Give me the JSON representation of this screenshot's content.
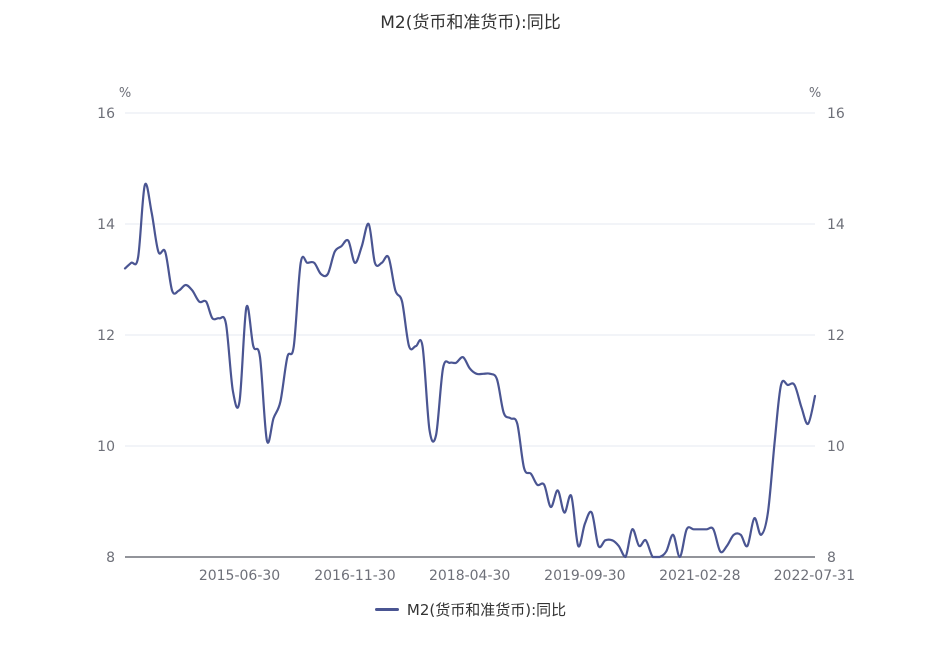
{
  "chart_data": {
    "type": "line",
    "title": "M2(货币和准货币):同比",
    "unit_left": "%",
    "unit_right": "%",
    "ylim": [
      8,
      16
    ],
    "yticks": [
      8,
      10,
      12,
      14,
      16
    ],
    "xlim": [
      "2014-01-31",
      "2022-07-31"
    ],
    "xticks": [
      "2015-06-30",
      "2016-11-30",
      "2018-04-30",
      "2019-09-30",
      "2021-02-28",
      "2022-07-31"
    ],
    "grid": true,
    "legend_position": "bottom",
    "series": [
      {
        "name": "M2(货币和准货币):同比",
        "color": "#4a5592",
        "points": [
          [
            "2014-01-31",
            13.2
          ],
          [
            "2014-02-28",
            13.3
          ],
          [
            "2014-03-31",
            13.4
          ],
          [
            "2014-04-30",
            14.7
          ],
          [
            "2014-05-31",
            14.2
          ],
          [
            "2014-06-30",
            13.5
          ],
          [
            "2014-07-31",
            13.5
          ],
          [
            "2014-08-31",
            12.8
          ],
          [
            "2014-09-30",
            12.8
          ],
          [
            "2014-10-31",
            12.9
          ],
          [
            "2014-11-30",
            12.8
          ],
          [
            "2014-12-31",
            12.6
          ],
          [
            "2015-01-31",
            12.6
          ],
          [
            "2015-02-28",
            12.3
          ],
          [
            "2015-03-31",
            12.3
          ],
          [
            "2015-04-30",
            12.2
          ],
          [
            "2015-05-31",
            11.0
          ],
          [
            "2015-06-30",
            10.8
          ],
          [
            "2015-07-31",
            12.5
          ],
          [
            "2015-08-31",
            11.8
          ],
          [
            "2015-09-30",
            11.6
          ],
          [
            "2015-10-31",
            10.1
          ],
          [
            "2015-11-30",
            10.5
          ],
          [
            "2015-12-31",
            10.8
          ],
          [
            "2016-01-31",
            11.6
          ],
          [
            "2016-02-29",
            11.8
          ],
          [
            "2016-03-31",
            13.3
          ],
          [
            "2016-04-30",
            13.3
          ],
          [
            "2016-05-31",
            13.3
          ],
          [
            "2016-06-30",
            13.1
          ],
          [
            "2016-07-31",
            13.1
          ],
          [
            "2016-08-31",
            13.5
          ],
          [
            "2016-09-30",
            13.6
          ],
          [
            "2016-10-31",
            13.7
          ],
          [
            "2016-11-30",
            13.3
          ],
          [
            "2016-12-31",
            13.6
          ],
          [
            "2017-01-31",
            14.0
          ],
          [
            "2017-02-28",
            13.3
          ],
          [
            "2017-03-31",
            13.3
          ],
          [
            "2017-04-30",
            13.4
          ],
          [
            "2017-05-31",
            12.8
          ],
          [
            "2017-06-30",
            12.6
          ],
          [
            "2017-07-31",
            11.8
          ],
          [
            "2017-08-31",
            11.8
          ],
          [
            "2017-09-30",
            11.8
          ],
          [
            "2017-10-31",
            10.3
          ],
          [
            "2017-11-30",
            10.2
          ],
          [
            "2017-12-31",
            11.4
          ],
          [
            "2018-01-31",
            11.5
          ],
          [
            "2018-02-28",
            11.5
          ],
          [
            "2018-03-31",
            11.6
          ],
          [
            "2018-04-30",
            11.4
          ],
          [
            "2018-05-31",
            11.3
          ],
          [
            "2018-06-30",
            11.3
          ],
          [
            "2018-07-31",
            11.3
          ],
          [
            "2018-08-31",
            11.2
          ],
          [
            "2018-09-30",
            10.6
          ],
          [
            "2018-10-31",
            10.5
          ],
          [
            "2018-11-30",
            10.4
          ],
          [
            "2018-12-31",
            9.6
          ],
          [
            "2019-01-31",
            9.5
          ],
          [
            "2019-02-28",
            9.3
          ],
          [
            "2019-03-31",
            9.3
          ],
          [
            "2019-04-30",
            8.9
          ],
          [
            "2019-05-31",
            9.2
          ],
          [
            "2019-06-30",
            8.8
          ],
          [
            "2019-07-31",
            9.1
          ],
          [
            "2019-08-31",
            8.2
          ],
          [
            "2019-09-30",
            8.6
          ],
          [
            "2019-10-31",
            8.8
          ],
          [
            "2019-11-30",
            8.2
          ],
          [
            "2019-12-31",
            8.3
          ],
          [
            "2020-01-31",
            8.3
          ],
          [
            "2020-02-29",
            8.2
          ],
          [
            "2020-03-31",
            8.0
          ],
          [
            "2020-04-30",
            8.5
          ],
          [
            "2020-05-31",
            8.2
          ],
          [
            "2020-06-30",
            8.3
          ],
          [
            "2020-07-31",
            8.0
          ],
          [
            "2020-08-31",
            8.0
          ],
          [
            "2020-09-30",
            8.1
          ],
          [
            "2020-10-31",
            8.4
          ],
          [
            "2020-11-30",
            8.0
          ],
          [
            "2020-12-31",
            8.5
          ],
          [
            "2021-01-31",
            8.5
          ],
          [
            "2021-02-28",
            8.5
          ],
          [
            "2021-03-31",
            8.5
          ],
          [
            "2021-04-30",
            8.5
          ],
          [
            "2021-05-31",
            8.1
          ],
          [
            "2021-06-30",
            8.2
          ],
          [
            "2021-07-31",
            8.4
          ],
          [
            "2021-08-31",
            8.4
          ],
          [
            "2021-09-30",
            8.2
          ],
          [
            "2021-10-31",
            8.7
          ],
          [
            "2021-11-30",
            8.4
          ],
          [
            "2021-12-31",
            8.8
          ],
          [
            "2022-01-31",
            10.1
          ],
          [
            "2022-02-28",
            11.1
          ],
          [
            "2022-03-31",
            11.1
          ],
          [
            "2022-04-30",
            11.1
          ],
          [
            "2022-05-31",
            10.7
          ],
          [
            "2022-06-30",
            10.4
          ],
          [
            "2022-07-31",
            10.9
          ]
        ]
      }
    ]
  }
}
